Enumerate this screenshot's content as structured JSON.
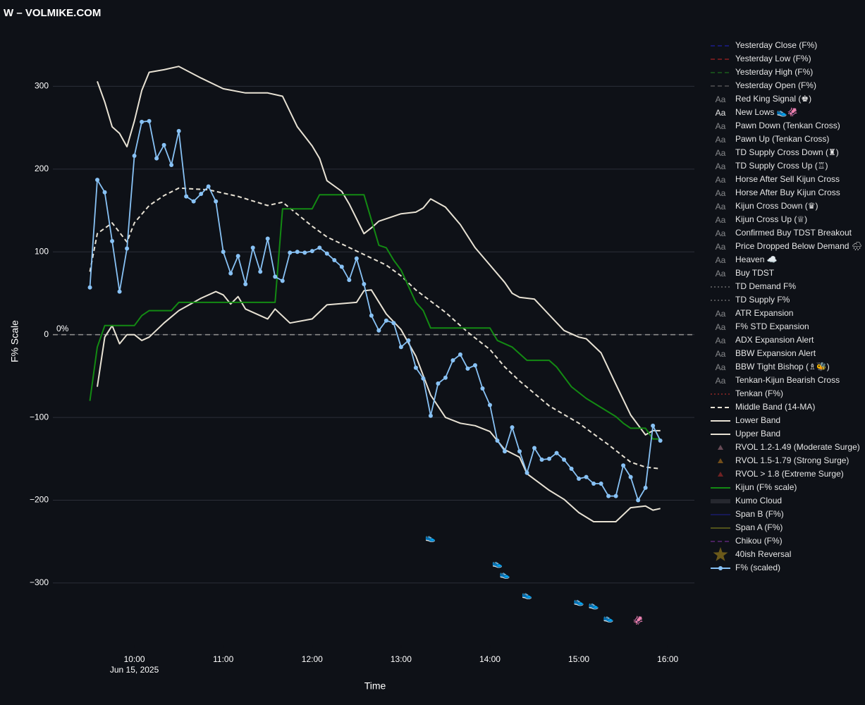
{
  "chart_data": {
    "type": "line",
    "title": "W – VOLMIKE.COM",
    "xlabel": "Time",
    "ylabel": "F% Scale",
    "x_sublabel": "Jun 15, 2025",
    "xlim": [
      "09:05",
      "16:18"
    ],
    "xticks": [
      "10:00",
      "11:00",
      "12:00",
      "13:00",
      "14:00",
      "15:00",
      "16:00"
    ],
    "ylim": [
      -375,
      377
    ],
    "yticks": [
      {
        "value": -300,
        "label": "−300"
      },
      {
        "value": -200,
        "label": "−200"
      },
      {
        "value": -100,
        "label": "−100"
      },
      0,
      100,
      200,
      300
    ],
    "grid": true,
    "zero_line": {
      "value": 0,
      "label": "0%"
    },
    "legend": "right",
    "series": [
      {
        "name": "Yesterday Close (F%)",
        "style": "dash",
        "color": "#2323b8",
        "visible": false
      },
      {
        "name": "Yesterday Low (F%)",
        "style": "dash",
        "color": "#b82424",
        "visible": false
      },
      {
        "name": "Yesterday High (F%)",
        "style": "dash",
        "color": "#1f7a1f",
        "visible": false
      },
      {
        "name": "Yesterday Open (F%)",
        "style": "dash",
        "color": "#6b6b6b",
        "visible": false
      },
      {
        "name": "Red King Signal (♚)",
        "style": "text",
        "symbol": "Aa",
        "color": "#c0302b",
        "visible": false
      },
      {
        "name": "New Lows 👟🦑",
        "style": "text",
        "symbol": "Aa",
        "color": "#ffffff",
        "visible": true,
        "x": [
          "13:20",
          "14:05",
          "14:10",
          "14:25",
          "15:00",
          "15:10",
          "15:20",
          "15:40"
        ],
        "values": [
          -246,
          -277,
          -290,
          -315,
          -323,
          -327,
          -343,
          -346
        ],
        "labels": [
          "👟",
          "👟",
          "👟",
          "👟",
          "👟",
          "👟",
          "👟",
          "🦑"
        ]
      },
      {
        "name": "Pawn Down (Tenkan Cross)",
        "style": "text",
        "symbol": "Aa",
        "color": "#c0302b",
        "visible": false
      },
      {
        "name": "Pawn Up (Tenkan Cross)",
        "style": "text",
        "symbol": "Aa",
        "color": "#2e9b2e",
        "visible": false
      },
      {
        "name": "TD Supply Cross Down (♜)",
        "style": "text",
        "symbol": "Aa",
        "color": "#c0302b",
        "visible": false
      },
      {
        "name": "TD Supply Cross Up (♖)",
        "style": "text",
        "symbol": "Aa",
        "color": "#2e9b2e",
        "visible": false
      },
      {
        "name": "Horse After Sell Kijun Cross",
        "style": "text",
        "symbol": "Aa",
        "color": "#c0302b",
        "visible": false
      },
      {
        "name": "Horse After Buy Kijun Cross",
        "style": "text",
        "symbol": "Aa",
        "color": "#2e9b2e",
        "visible": false
      },
      {
        "name": "Kijun Cross Down (♛)",
        "style": "text",
        "symbol": "Aa",
        "color": "#c0302b",
        "visible": false
      },
      {
        "name": "Kijun Cross Up (♕)",
        "style": "text",
        "symbol": "Aa",
        "color": "#2e9b2e",
        "visible": false
      },
      {
        "name": "Confirmed Buy TDST Breakout",
        "style": "text",
        "symbol": "Aa",
        "color": "#8b3fb0",
        "visible": false
      },
      {
        "name": "Price Dropped Below Demand 🌧",
        "style": "text",
        "symbol": "Aa",
        "color": "#b0b0b0",
        "visible": false
      },
      {
        "name": "Heaven ☁️",
        "style": "text",
        "symbol": "Aa",
        "color": "#b0b0b0",
        "visible": false
      },
      {
        "name": "Buy TDST",
        "style": "text",
        "symbol": "Aa",
        "color": "#2e9b2e",
        "visible": false
      },
      {
        "name": "TD Demand F%",
        "style": "dot",
        "color": "#8a8a8a",
        "visible": false
      },
      {
        "name": "TD Supply F%",
        "style": "dot",
        "color": "#8a8a8a",
        "visible": false
      },
      {
        "name": "ATR Expansion",
        "style": "text",
        "symbol": "Aa",
        "color": "#b0b0b0",
        "visible": false
      },
      {
        "name": "F% STD Expansion",
        "style": "text",
        "symbol": "Aa",
        "color": "#b0b0b0",
        "visible": false
      },
      {
        "name": "ADX Expansion Alert",
        "style": "text",
        "symbol": "Aa",
        "color": "#b0b0b0",
        "visible": false
      },
      {
        "name": "BBW Expansion Alert",
        "style": "text",
        "symbol": "Aa",
        "color": "#b0b0b0",
        "visible": false
      },
      {
        "name": "BBW Tight Bishop (♗🐝)",
        "style": "text",
        "symbol": "Aa",
        "color": "#b03a9a",
        "visible": false
      },
      {
        "name": "Tenkan-Kijun Bearish Cross",
        "style": "text",
        "symbol": "Aa",
        "color": "#b0b0b0",
        "visible": false
      },
      {
        "name": "Tenkan (F%)",
        "style": "dot",
        "color": "#c0302b",
        "visible": false
      },
      {
        "name": "Middle Band (14-MA)",
        "style": "dash",
        "color": "#e8e2d4",
        "visible": true,
        "x": [
          "09:30",
          "09:35",
          "09:45",
          "09:55",
          "10:00",
          "10:10",
          "10:20",
          "10:30",
          "10:50",
          "11:00",
          "11:10",
          "11:30",
          "11:40",
          "12:00",
          "12:10",
          "12:30",
          "12:50",
          "13:00",
          "13:10",
          "13:30",
          "13:45",
          "14:00",
          "14:10",
          "14:20",
          "14:40",
          "15:00",
          "15:10",
          "15:20",
          "15:35",
          "15:45",
          "15:55"
        ],
        "values": [
          76,
          122,
          135,
          112,
          135,
          156,
          168,
          177,
          175,
          171,
          167,
          156,
          160,
          131,
          118,
          101,
          84,
          71,
          54,
          27,
          3,
          -18,
          -39,
          -56,
          -86,
          -107,
          -120,
          -133,
          -154,
          -160,
          -162
        ]
      },
      {
        "name": "Lower Band",
        "style": "line",
        "color": "#e8e2d4",
        "visible": true,
        "x": [
          "09:35",
          "09:40",
          "09:45",
          "09:50",
          "09:55",
          "10:00",
          "10:05",
          "10:10",
          "10:20",
          "10:30",
          "10:45",
          "10:55",
          "11:00",
          "11:05",
          "11:10",
          "11:15",
          "11:30",
          "11:35",
          "11:45",
          "12:00",
          "12:10",
          "12:30",
          "12:35",
          "12:40",
          "12:50",
          "13:00",
          "13:10",
          "13:20",
          "13:30",
          "13:40",
          "13:50",
          "14:00",
          "14:10",
          "14:20",
          "14:25",
          "14:40",
          "14:50",
          "15:00",
          "15:10",
          "15:25",
          "15:35",
          "15:45",
          "15:50",
          "15:55"
        ],
        "values": [
          -63,
          -3,
          11,
          -11,
          0,
          0,
          -7,
          -3,
          14,
          29,
          44,
          52,
          48,
          37,
          46,
          31,
          19,
          31,
          14,
          19,
          36,
          39,
          53,
          54,
          25,
          6,
          -26,
          -73,
          -100,
          -107,
          -110,
          -117,
          -139,
          -148,
          -168,
          -188,
          -199,
          -215,
          -226,
          -226,
          -209,
          -207,
          -212,
          -210
        ]
      },
      {
        "name": "Upper Band",
        "style": "line",
        "color": "#e8e2d4",
        "visible": true,
        "x": [
          "09:35",
          "09:40",
          "09:45",
          "09:50",
          "09:55",
          "10:00",
          "10:05",
          "10:10",
          "10:20",
          "10:30",
          "10:45",
          "11:00",
          "11:15",
          "11:30",
          "11:40",
          "11:50",
          "12:00",
          "12:05",
          "12:10",
          "12:20",
          "12:25",
          "12:35",
          "12:40",
          "12:45",
          "13:00",
          "13:10",
          "13:15",
          "13:20",
          "13:30",
          "13:40",
          "13:50",
          "14:00",
          "14:10",
          "14:15",
          "14:20",
          "14:30",
          "14:40",
          "14:50",
          "15:00",
          "15:05",
          "15:15",
          "15:25",
          "15:35",
          "15:45",
          "15:50",
          "15:55"
        ],
        "values": [
          306,
          281,
          251,
          243,
          227,
          258,
          295,
          317,
          320,
          324,
          310,
          297,
          292,
          292,
          288,
          251,
          228,
          213,
          186,
          173,
          158,
          122,
          129,
          137,
          146,
          148,
          153,
          164,
          154,
          133,
          105,
          84,
          63,
          50,
          45,
          43,
          24,
          5,
          -3,
          -5,
          -22,
          -60,
          -97,
          -121,
          -116,
          -116
        ]
      },
      {
        "name": "RVOL 1.2-1.49 (Moderate Surge)",
        "style": "triangle",
        "color": "#b07a8a",
        "visible": false
      },
      {
        "name": "RVOL 1.5-1.79 (Strong Surge)",
        "style": "triangle",
        "color": "#c7821e",
        "visible": false
      },
      {
        "name": "RVOL > 1.8 (Extreme Surge)",
        "style": "triangle",
        "color": "#c0302b",
        "visible": false
      },
      {
        "name": "Kijun (F% scale)",
        "style": "line",
        "color": "#138a13",
        "visible": true,
        "x": [
          "09:30",
          "09:35",
          "09:40",
          "10:00",
          "10:05",
          "10:10",
          "10:25",
          "10:30",
          "11:35",
          "11:40",
          "12:00",
          "12:05",
          "12:35",
          "12:45",
          "12:50",
          "12:55",
          "13:00",
          "13:10",
          "13:15",
          "13:20",
          "14:00",
          "14:05",
          "14:15",
          "14:25",
          "14:40",
          "14:45",
          "14:55",
          "15:05",
          "15:25",
          "15:30",
          "15:35",
          "15:45",
          "15:50",
          "15:55"
        ],
        "values": [
          -80,
          -15,
          11,
          11,
          23,
          29,
          29,
          39,
          39,
          152,
          152,
          169,
          169,
          108,
          105,
          90,
          78,
          39,
          29,
          8,
          8,
          -7,
          -15,
          -31,
          -31,
          -39,
          -63,
          -77,
          -99,
          -107,
          -113,
          -113,
          -126,
          -126
        ]
      },
      {
        "name": "Kumo Cloud",
        "style": "band",
        "color": "#3a3d44",
        "visible": false
      },
      {
        "name": "Span B (F%)",
        "style": "line",
        "color": "#20208a",
        "visible": false
      },
      {
        "name": "Span A (F%)",
        "style": "line",
        "color": "#8a8a20",
        "visible": false
      },
      {
        "name": "Chikou (F%)",
        "style": "dash",
        "color": "#7a2f9a",
        "visible": false
      },
      {
        "name": "40ish Reversal",
        "style": "star",
        "color": "#b8951e",
        "visible": false
      },
      {
        "name": "F% (scaled)",
        "style": "markers",
        "color": "#88c2f5",
        "visible": true,
        "x": [
          "09:30",
          "09:35",
          "09:40",
          "09:45",
          "09:50",
          "09:55",
          "10:00",
          "10:05",
          "10:10",
          "10:15",
          "10:20",
          "10:25",
          "10:30",
          "10:35",
          "10:40",
          "10:45",
          "10:50",
          "10:55",
          "11:00",
          "11:05",
          "11:10",
          "11:15",
          "11:20",
          "11:25",
          "11:30",
          "11:35",
          "11:40",
          "11:45",
          "11:50",
          "11:55",
          "12:00",
          "12:05",
          "12:10",
          "12:15",
          "12:20",
          "12:25",
          "12:30",
          "12:35",
          "12:40",
          "12:45",
          "12:50",
          "12:55",
          "13:00",
          "13:05",
          "13:10",
          "13:15",
          "13:20",
          "13:25",
          "13:30",
          "13:35",
          "13:40",
          "13:45",
          "13:50",
          "13:55",
          "14:00",
          "14:05",
          "14:10",
          "14:15",
          "14:20",
          "14:25",
          "14:30",
          "14:35",
          "14:40",
          "14:45",
          "14:50",
          "14:55",
          "15:00",
          "15:05",
          "15:10",
          "15:15",
          "15:20",
          "15:25",
          "15:30",
          "15:35",
          "15:40",
          "15:45",
          "15:50",
          "15:55"
        ],
        "values": [
          57,
          187,
          172,
          113,
          52,
          104,
          216,
          257,
          258,
          213,
          229,
          205,
          246,
          167,
          161,
          170,
          179,
          161,
          100,
          74,
          95,
          61,
          105,
          76,
          116,
          70,
          65,
          99,
          100,
          99,
          101,
          105,
          98,
          90,
          82,
          66,
          92,
          61,
          23,
          5,
          17,
          14,
          -15,
          -7,
          -40,
          -53,
          -98,
          -59,
          -52,
          -31,
          -24,
          -41,
          -37,
          -65,
          -85,
          -128,
          -141,
          -112,
          -141,
          -167,
          -137,
          -151,
          -150,
          -143,
          -151,
          -162,
          -174,
          -172,
          -180,
          -180,
          -195,
          -195,
          -158,
          -172,
          -200,
          -185,
          -110,
          -128
        ]
      }
    ]
  }
}
